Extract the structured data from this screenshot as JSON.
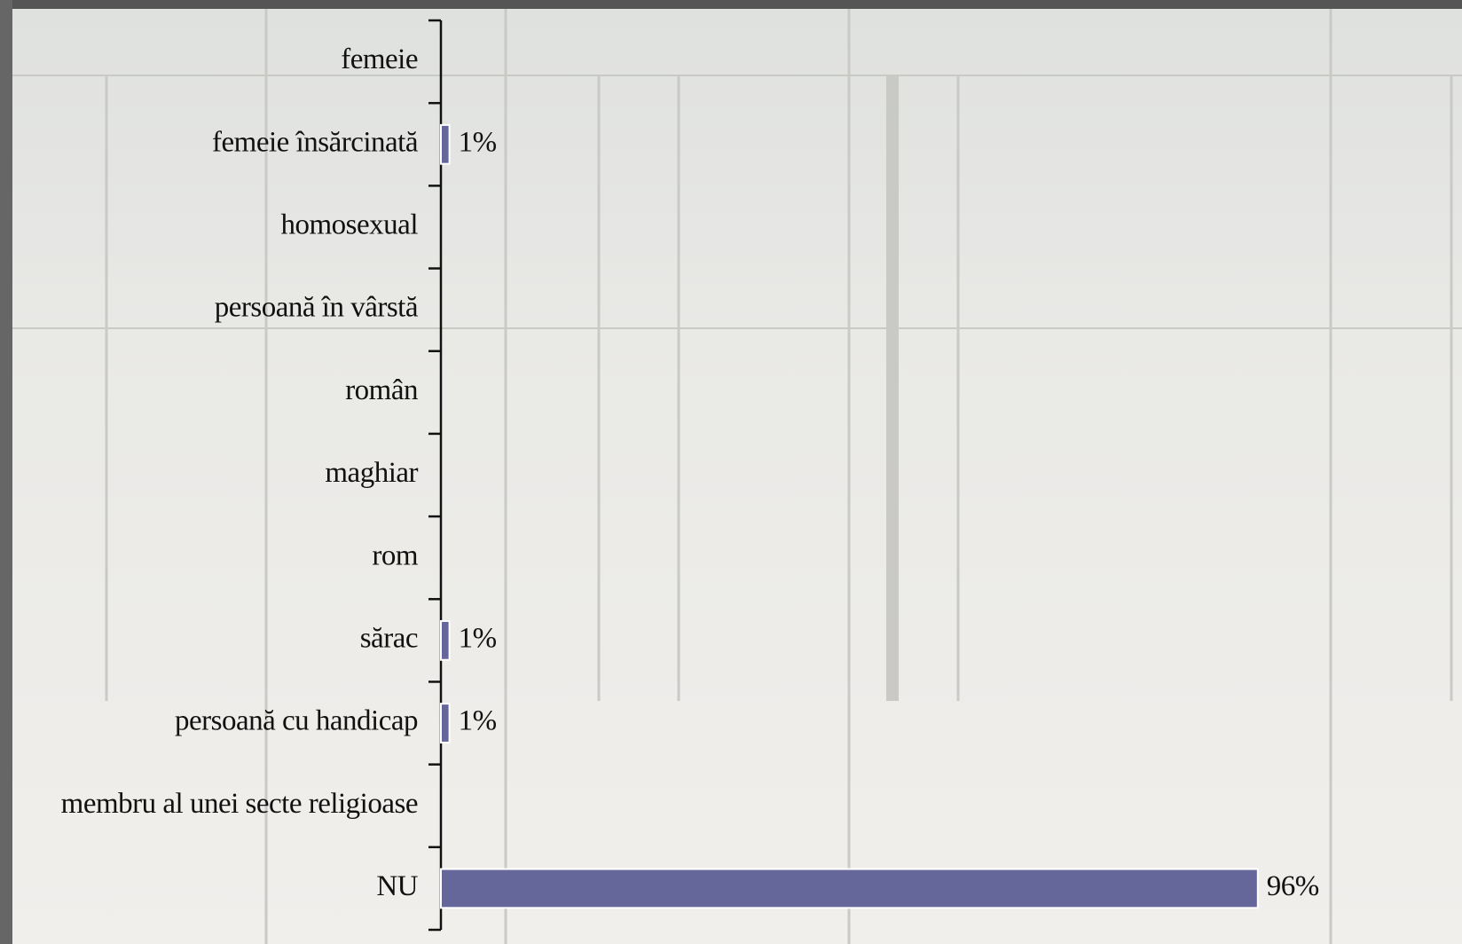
{
  "chart_data": {
    "type": "hbar",
    "categories": [
      "femeie",
      "femeie însărcinată",
      "homosexual",
      "persoană în vârstă",
      "român",
      "maghiar",
      "rom",
      "sărac",
      "persoană cu handicap",
      "membru al unei secte religioase",
      "NU"
    ],
    "values": [
      0,
      1,
      0,
      0,
      0,
      0,
      0,
      1,
      1,
      0,
      96
    ],
    "value_labels": [
      null,
      "1%",
      null,
      null,
      null,
      null,
      null,
      "1%",
      "1%",
      null,
      "96%"
    ],
    "color": "#65669a",
    "xlim": [
      0,
      120
    ]
  }
}
